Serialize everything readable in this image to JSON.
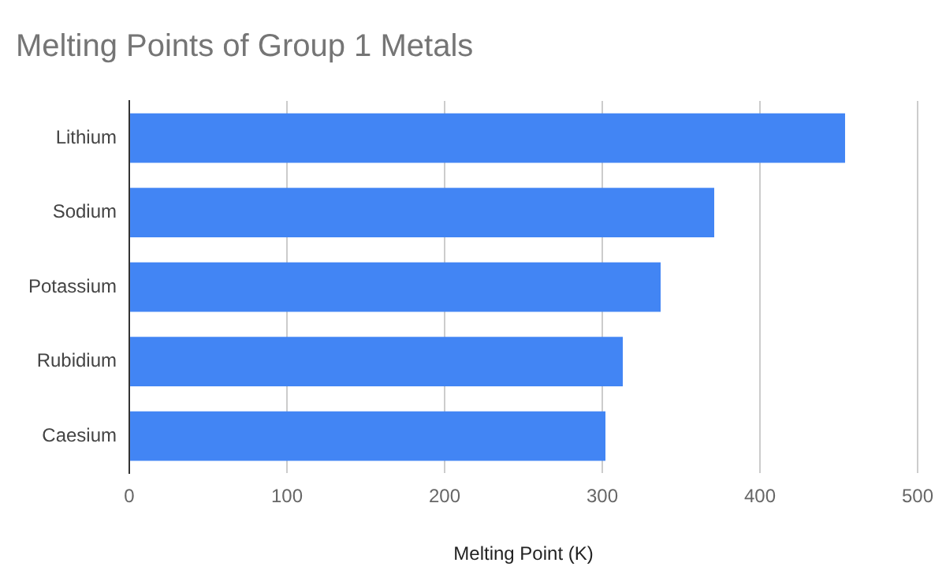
{
  "chart_data": {
    "type": "bar",
    "orientation": "horizontal",
    "title": "Melting Points of Group 1 Metals",
    "xlabel": "Melting Point (K)",
    "categories": [
      "Lithium",
      "Sodium",
      "Potassium",
      "Rubidium",
      "Caesium"
    ],
    "values": [
      454,
      371,
      337,
      313,
      302
    ],
    "color": "#4285f4",
    "xlim": [
      0,
      500
    ],
    "xticks": [
      0,
      100,
      200,
      300,
      400,
      500
    ],
    "grid": "x",
    "legend": false
  }
}
